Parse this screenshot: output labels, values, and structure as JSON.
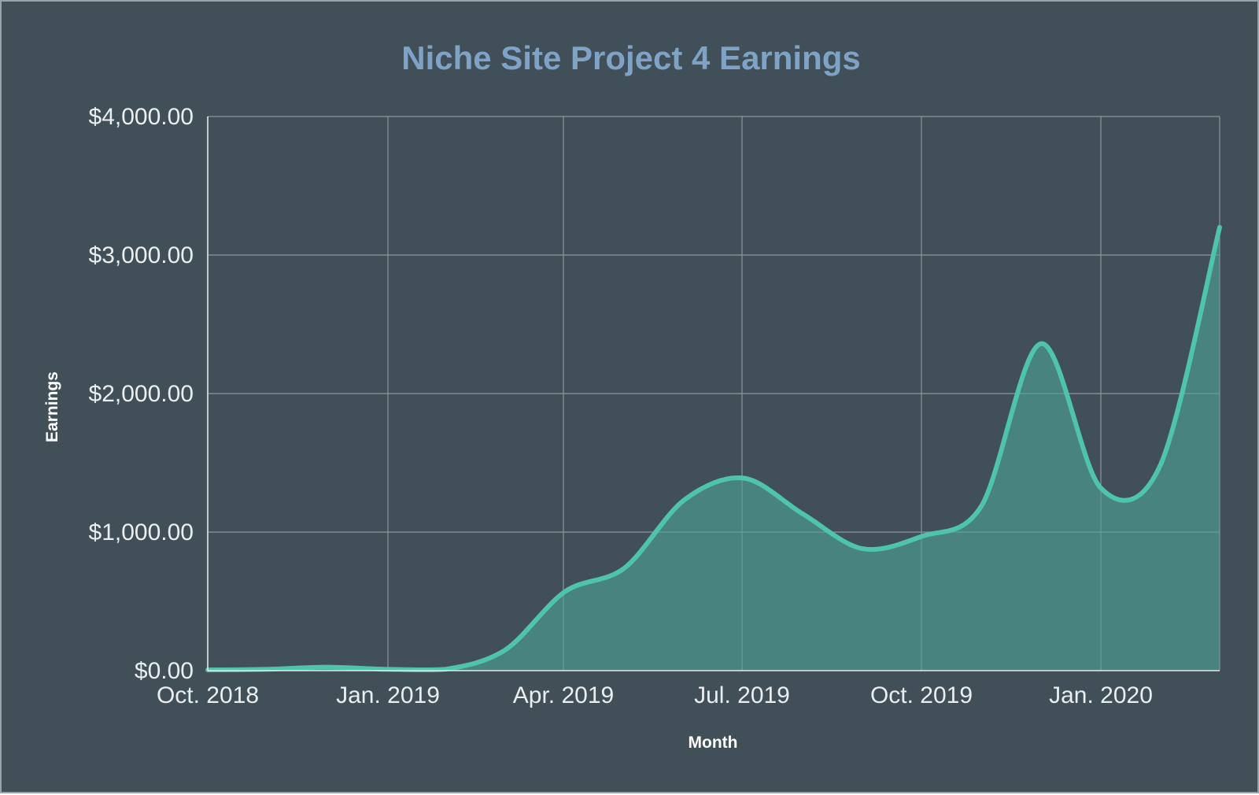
{
  "chart_data": {
    "type": "area",
    "title": "Niche Site Project 4 Earnings",
    "xlabel": "Month",
    "ylabel": "Earnings",
    "x_tick_labels": [
      "Oct. 2018",
      "Jan. 2019",
      "Apr. 2019",
      "Jul. 2019",
      "Oct. 2019",
      "Jan. 2020"
    ],
    "y_tick_labels": [
      "$0.00",
      "$1,000.00",
      "$2,000.00",
      "$3,000.00",
      "$4,000.00"
    ],
    "ylim": [
      0,
      4000
    ],
    "x": [
      "2018-10",
      "2018-11",
      "2018-12",
      "2019-01",
      "2019-02",
      "2019-03",
      "2019-04",
      "2019-05",
      "2019-06",
      "2019-07",
      "2019-08",
      "2019-09",
      "2019-10",
      "2019-11",
      "2019-12",
      "2020-01",
      "2020-02",
      "2020-03"
    ],
    "series": [
      {
        "values": [
          5,
          10,
          25,
          10,
          10,
          150,
          570,
          740,
          1230,
          1390,
          1130,
          880,
          970,
          1190,
          2360,
          1320,
          1480,
          3200
        ]
      }
    ],
    "grid": true,
    "legend": "none",
    "colors": {
      "background": "#414f59",
      "line": "#4fc4ad",
      "area": "#4fa395",
      "title": "#7fa3c6",
      "grid": "#8c979e",
      "text": "#e9eef0"
    }
  }
}
